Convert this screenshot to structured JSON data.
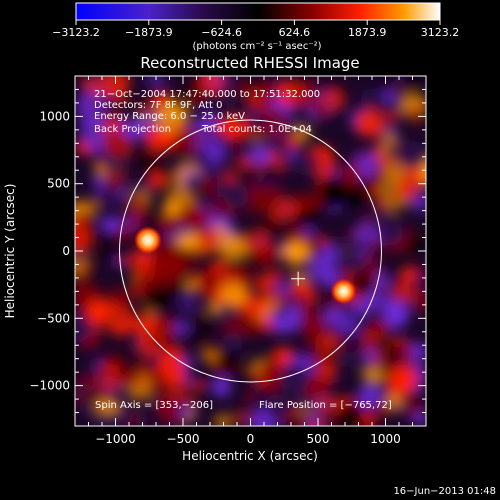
{
  "chart_data": {
    "type": "heatmap",
    "title": "Reconstructed RHESSI Image",
    "xlabel": "Heliocentric X (arcsec)",
    "ylabel": "Heliocentric Y (arcsec)",
    "xlim": [
      -1300,
      1300
    ],
    "ylim": [
      -1300,
      1300
    ],
    "x_ticks": [
      -1000,
      -500,
      0,
      500,
      1000
    ],
    "y_ticks": [
      -1000,
      -500,
      0,
      500,
      1000
    ],
    "x_tick_labels": [
      "−1000",
      "−500",
      "0",
      "500",
      "1000"
    ],
    "y_tick_labels": [
      "−1000",
      "−500",
      "0",
      "500",
      "1000"
    ],
    "colorbar": {
      "min": -3123.2,
      "max": 3123.2,
      "tick_labels": [
        "−3123.2",
        "−1873.9",
        "−624.6",
        "624.6",
        "1873.9",
        "3123.2"
      ],
      "tick_values": [
        -3123.2,
        -1873.9,
        -624.6,
        624.6,
        1873.9,
        3123.2
      ],
      "unit_label": "(photons cm⁻² s⁻¹ asec⁻²)"
    },
    "annotations": [
      "21−Oct−2004 17:47:40.000 to 17:51:32.000",
      "Detectors: 7F 8F 9F, Att 0",
      "Energy Range: 6.0 − 25.0 keV",
      "Back Projection",
      "Total counts: 1.0E+04"
    ],
    "spin_axis_label": "Spin Axis = [353,−206]",
    "flare_position_label": "Flare Position = [−765,72]",
    "spin_axis": [
      353,
      -206
    ],
    "solar_disk_center": [
      0,
      0
    ],
    "solar_disk_radius": 970,
    "bright_sources": [
      {
        "x": -760,
        "y": 80,
        "value": 3123.2
      },
      {
        "x": 690,
        "y": -300,
        "value": 2600
      }
    ],
    "grid": false,
    "colormap": [
      "#0000ff",
      "#6a2bd8",
      "#2a0a4a",
      "#000000",
      "#8a0000",
      "#ff2000",
      "#ff9a00",
      "#ffffff"
    ]
  },
  "footer": {
    "timestamp": "16−Jun−2013 01:48"
  }
}
